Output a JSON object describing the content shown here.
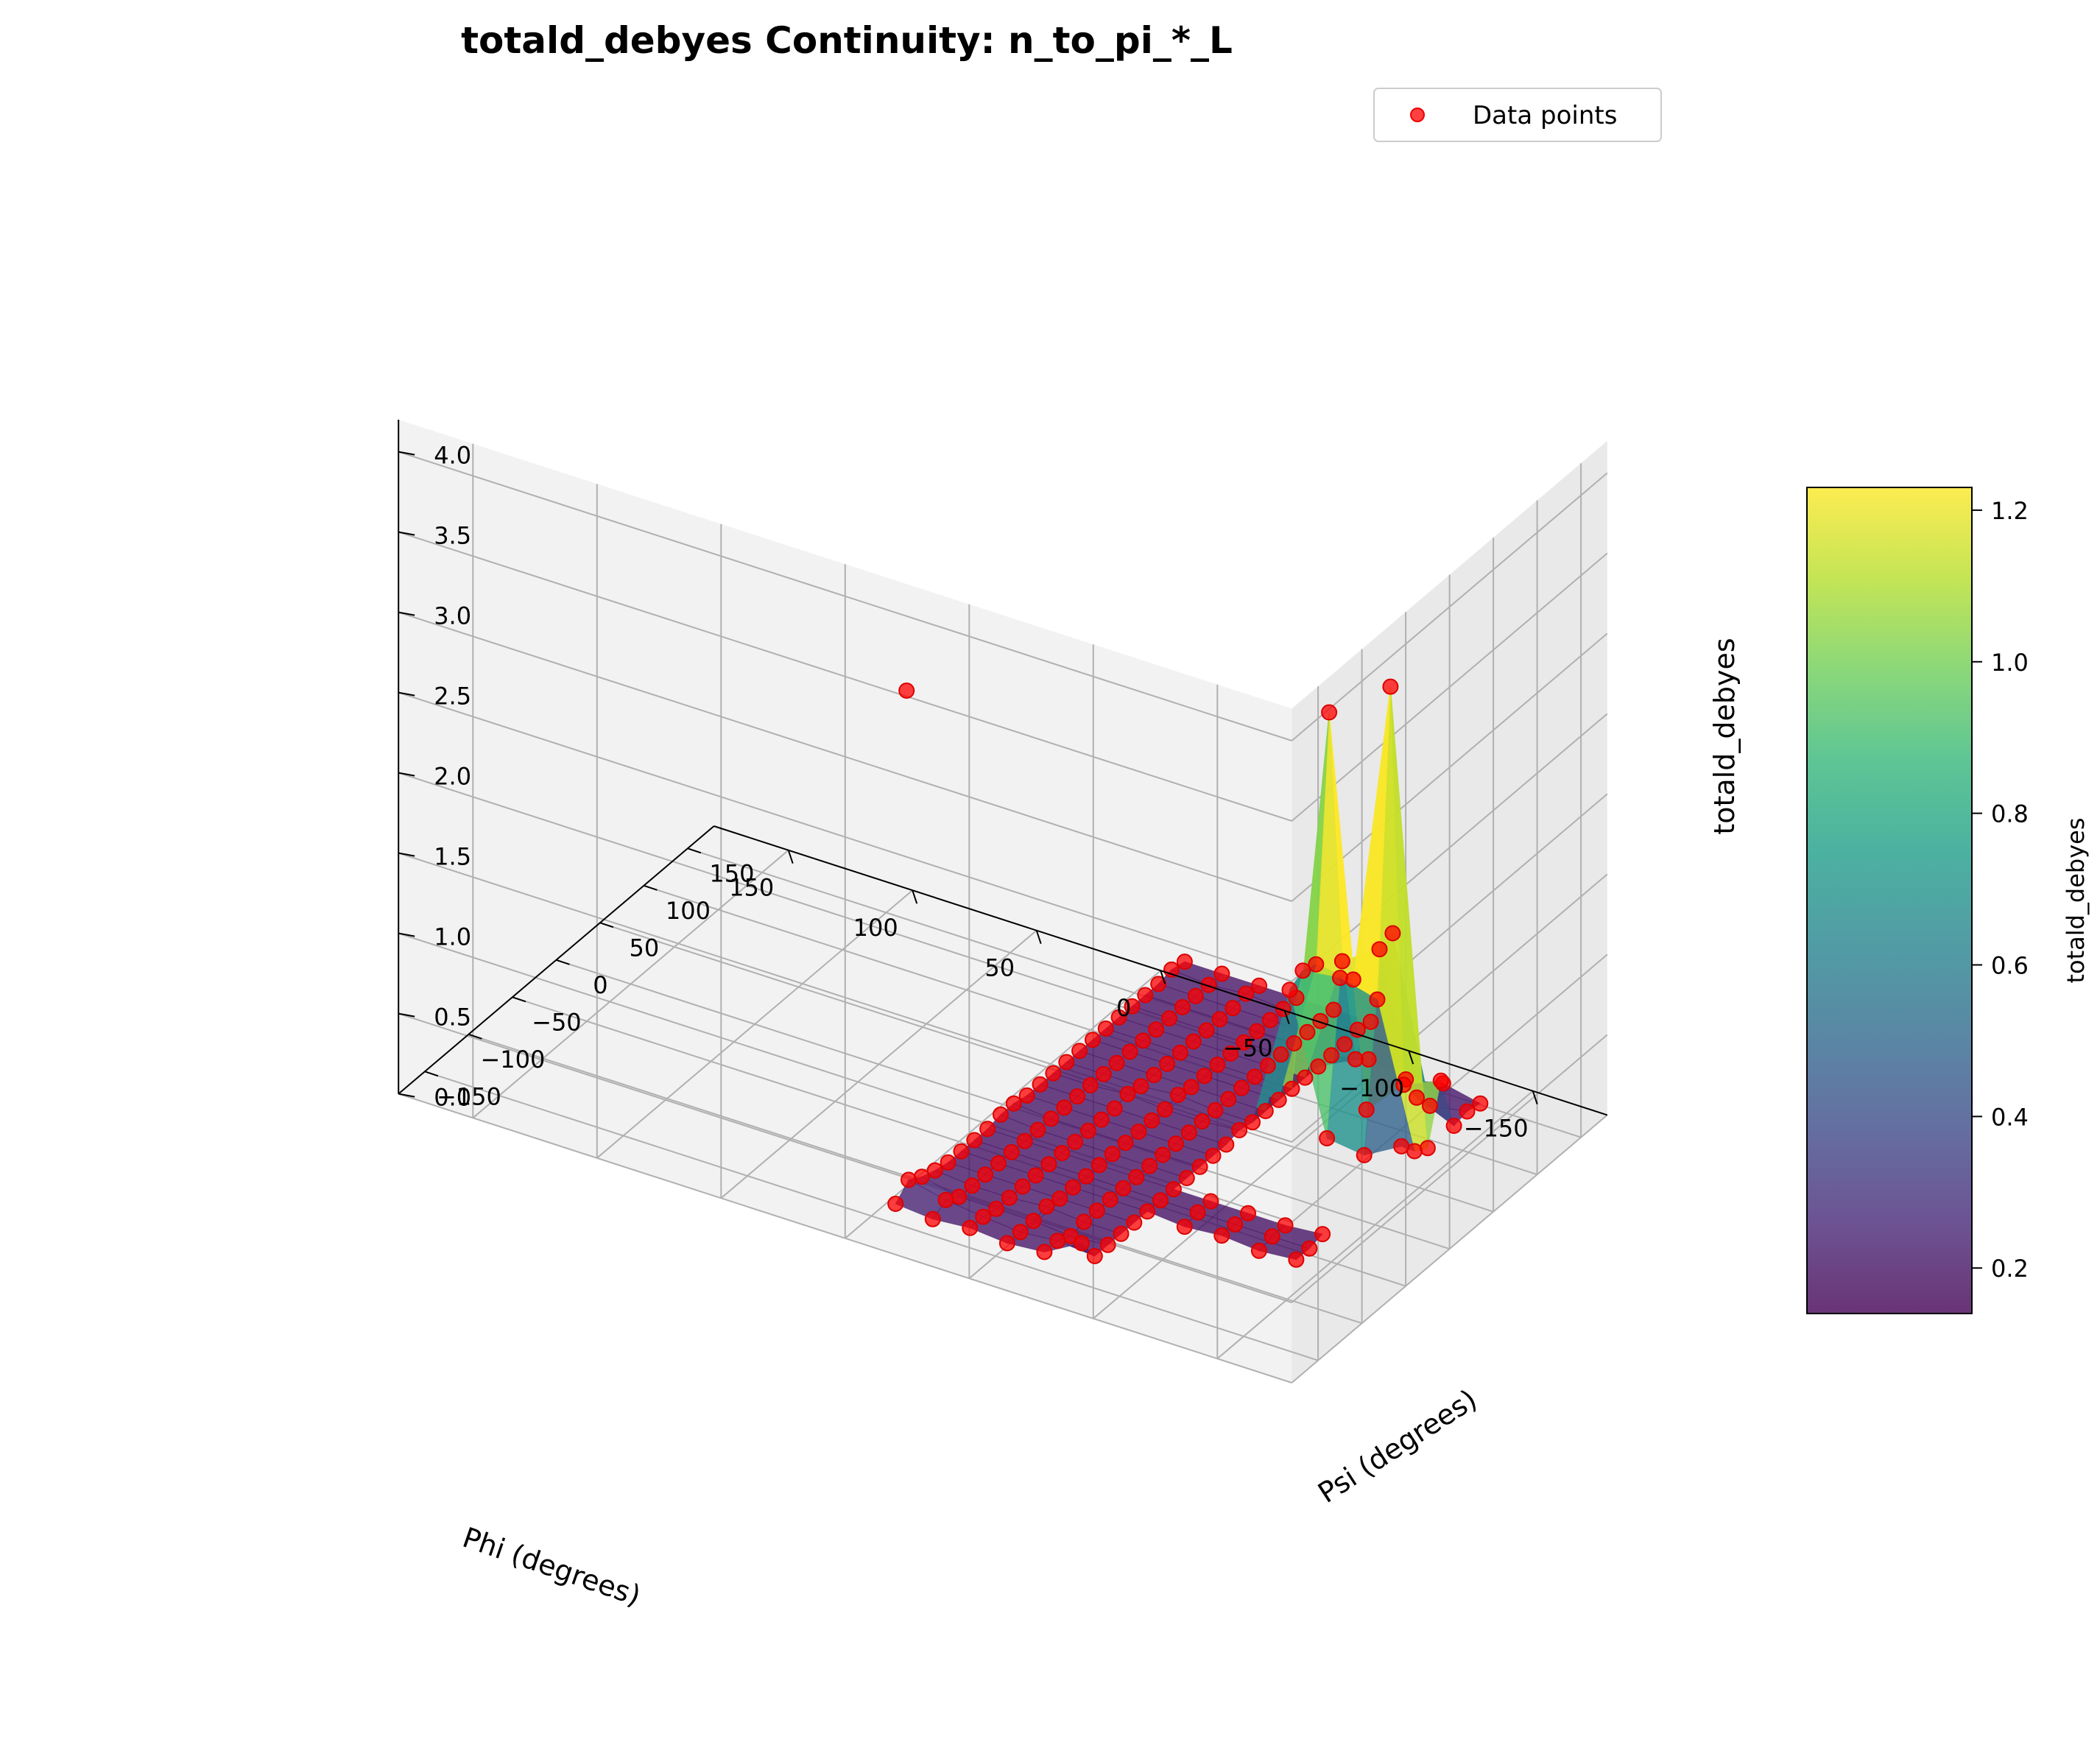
{
  "chart_data": {
    "type": "scatter",
    "surface_type": "surface3d",
    "title": "totald_debyes Continuity: n_to_pi_*_L",
    "xlabel": "Phi (degrees)",
    "ylabel": "Psi (degrees)",
    "zlabel": "totald_debyes",
    "xlim": [
      -180,
      180
    ],
    "ylim": [
      -180,
      180
    ],
    "zlim": [
      0,
      4.2
    ],
    "xticks": [
      "−150",
      "−100",
      "−50",
      "0",
      "50",
      "100",
      "150"
    ],
    "yticks": [
      "−150",
      "−100",
      "−50",
      "0",
      "50",
      "100",
      "150"
    ],
    "zticks": [
      "0.0",
      "0.5",
      "1.0",
      "1.5",
      "2.0",
      "2.5",
      "3.0",
      "3.5",
      "4.0"
    ],
    "colorbar": {
      "label": "totald_debyes",
      "colormap": "viridis",
      "range": [
        0.14,
        1.23
      ],
      "ticks": [
        "0.2",
        "0.4",
        "0.6",
        "0.8",
        "1.0",
        "1.2"
      ]
    },
    "legend": {
      "position": "top-right",
      "entries": [
        "Data points"
      ]
    },
    "grid": true,
    "marker_color": "#ff0000",
    "points": [
      [
        -90,
        -165,
        0.35
      ],
      [
        -75,
        -165,
        0.22
      ],
      [
        -60,
        -165,
        0.2
      ],
      [
        -45,
        -165,
        0.22
      ],
      [
        -30,
        -165,
        0.2
      ],
      [
        -15,
        -165,
        0.22
      ],
      [
        -90,
        -150,
        0.2
      ],
      [
        -75,
        -150,
        0.22
      ],
      [
        -60,
        -150,
        0.2
      ],
      [
        -45,
        -150,
        0.22
      ],
      [
        -30,
        -150,
        0.25
      ],
      [
        -15,
        -150,
        0.3
      ],
      [
        -90,
        -135,
        0.2
      ],
      [
        -75,
        -135,
        0.18
      ],
      [
        -60,
        -135,
        0.2
      ],
      [
        -45,
        -135,
        0.2
      ],
      [
        -30,
        -135,
        0.2
      ],
      [
        -15,
        -135,
        0.25
      ],
      [
        -90,
        -120,
        0.2
      ],
      [
        -75,
        -120,
        0.2
      ],
      [
        -60,
        -120,
        0.22
      ],
      [
        -45,
        -120,
        0.2
      ],
      [
        -30,
        -120,
        0.2
      ],
      [
        -15,
        -120,
        0.22
      ],
      [
        -90,
        -105,
        0.2
      ],
      [
        -75,
        -105,
        0.2
      ],
      [
        -60,
        -105,
        0.2
      ],
      [
        -45,
        -105,
        0.2
      ],
      [
        -30,
        -105,
        0.2
      ],
      [
        -15,
        -105,
        0.2
      ],
      [
        -90,
        -90,
        0.2
      ],
      [
        -75,
        -90,
        0.2
      ],
      [
        -60,
        -90,
        0.2
      ],
      [
        -45,
        -90,
        0.2
      ],
      [
        -30,
        -90,
        0.2
      ],
      [
        -15,
        -90,
        0.2
      ],
      [
        -90,
        -75,
        0.2
      ],
      [
        -75,
        -75,
        0.2
      ],
      [
        -60,
        -75,
        0.2
      ],
      [
        -45,
        -75,
        0.2
      ],
      [
        -30,
        -75,
        0.2
      ],
      [
        -15,
        -75,
        0.2
      ],
      [
        -90,
        -60,
        0.2
      ],
      [
        -75,
        -60,
        0.2
      ],
      [
        -60,
        -60,
        0.2
      ],
      [
        -45,
        -60,
        0.2
      ],
      [
        -30,
        -60,
        0.2
      ],
      [
        -15,
        -60,
        0.2
      ],
      [
        -90,
        -45,
        0.2
      ],
      [
        -75,
        -45,
        0.2
      ],
      [
        -60,
        -45,
        0.2
      ],
      [
        -45,
        -45,
        0.2
      ],
      [
        -30,
        -45,
        0.2
      ],
      [
        -15,
        -45,
        0.22
      ],
      [
        -90,
        -30,
        0.2
      ],
      [
        -75,
        -30,
        0.2
      ],
      [
        -60,
        -30,
        0.2
      ],
      [
        -45,
        -30,
        0.2
      ],
      [
        -30,
        -30,
        0.2
      ],
      [
        -15,
        -30,
        0.22
      ],
      [
        -90,
        -15,
        0.2
      ],
      [
        -75,
        -15,
        0.2
      ],
      [
        -60,
        -15,
        0.2
      ],
      [
        -45,
        -15,
        0.2
      ],
      [
        -30,
        -15,
        0.2
      ],
      [
        -15,
        -15,
        0.2
      ],
      [
        -90,
        0,
        0.2
      ],
      [
        -75,
        0,
        0.2
      ],
      [
        -60,
        0,
        0.2
      ],
      [
        -45,
        0,
        0.2
      ],
      [
        -30,
        0,
        0.2
      ],
      [
        -15,
        0,
        0.2
      ],
      [
        -90,
        15,
        0.22
      ],
      [
        -75,
        15,
        0.2
      ],
      [
        -60,
        15,
        0.2
      ],
      [
        -45,
        15,
        0.22
      ],
      [
        -30,
        15,
        0.2
      ],
      [
        -15,
        15,
        0.2
      ],
      [
        -90,
        30,
        0.2
      ],
      [
        -75,
        30,
        0.2
      ],
      [
        -60,
        30,
        0.22
      ],
      [
        -45,
        30,
        0.2
      ],
      [
        -30,
        30,
        0.2
      ],
      [
        -15,
        30,
        0.2
      ],
      [
        -90,
        45,
        0.2
      ],
      [
        -75,
        45,
        0.2
      ],
      [
        -60,
        45,
        0.2
      ],
      [
        -45,
        45,
        0.2
      ],
      [
        -30,
        45,
        0.2
      ],
      [
        -15,
        45,
        0.2
      ],
      [
        -90,
        60,
        0.2
      ],
      [
        -75,
        60,
        0.2
      ],
      [
        -60,
        60,
        0.2
      ],
      [
        -45,
        60,
        0.2
      ],
      [
        -30,
        60,
        0.2
      ],
      [
        -15,
        60,
        0.2
      ],
      [
        -90,
        75,
        0.2
      ],
      [
        -75,
        75,
        0.2
      ],
      [
        -60,
        75,
        0.2
      ],
      [
        -45,
        75,
        0.2
      ],
      [
        -30,
        75,
        0.2
      ],
      [
        -15,
        75,
        0.2
      ],
      [
        -90,
        90,
        0.2
      ],
      [
        -75,
        90,
        0.2
      ],
      [
        -60,
        90,
        0.2
      ],
      [
        -45,
        90,
        0.2
      ],
      [
        -30,
        90,
        0.2
      ],
      [
        -15,
        90,
        0.2
      ],
      [
        -90,
        105,
        0.2
      ],
      [
        -75,
        105,
        0.2
      ],
      [
        -60,
        105,
        0.2
      ],
      [
        -45,
        105,
        0.2
      ],
      [
        -30,
        105,
        0.2
      ],
      [
        -15,
        105,
        0.2
      ],
      [
        -90,
        120,
        0.2
      ],
      [
        -75,
        120,
        0.2
      ],
      [
        -60,
        120,
        0.2
      ],
      [
        -45,
        120,
        0.2
      ],
      [
        -30,
        120,
        0.2
      ],
      [
        -15,
        120,
        0.2
      ],
      [
        -90,
        135,
        0.2
      ],
      [
        -75,
        135,
        0.2
      ],
      [
        -60,
        135,
        0.2
      ],
      [
        -45,
        135,
        0.2
      ],
      [
        -30,
        135,
        0.2
      ],
      [
        -15,
        135,
        0.2
      ],
      [
        -90,
        150,
        0.22
      ],
      [
        -75,
        150,
        0.2
      ],
      [
        -60,
        150,
        0.2
      ],
      [
        -45,
        150,
        0.22
      ],
      [
        -30,
        150,
        0.2
      ],
      [
        -15,
        150,
        0.22
      ],
      [
        -90,
        165,
        0.2
      ],
      [
        -75,
        165,
        0.2
      ],
      [
        -60,
        165,
        0.2
      ],
      [
        -45,
        165,
        0.2
      ],
      [
        -30,
        165,
        0.2
      ],
      [
        -15,
        165,
        0.2
      ],
      [
        -150,
        -90,
        0.2
      ],
      [
        -135,
        -90,
        0.18
      ],
      [
        -120,
        -90,
        0.2
      ],
      [
        -105,
        -90,
        0.18
      ],
      [
        -150,
        -75,
        0.2
      ],
      [
        -135,
        -75,
        0.2
      ],
      [
        -120,
        -75,
        0.2
      ],
      [
        -105,
        -75,
        0.2
      ],
      [
        -150,
        -60,
        0.22
      ],
      [
        -135,
        -60,
        0.2
      ],
      [
        -120,
        -60,
        0.2
      ],
      [
        -105,
        -60,
        0.2
      ],
      [
        -150,
        30,
        0.35
      ],
      [
        -135,
        30,
        0.22
      ],
      [
        -120,
        30,
        0.25
      ],
      [
        -105,
        30,
        1.1
      ],
      [
        -150,
        45,
        0.25
      ],
      [
        -135,
        45,
        1.12
      ],
      [
        -120,
        45,
        1.18
      ],
      [
        -105,
        45,
        1.15
      ],
      [
        -150,
        60,
        0.2
      ],
      [
        -135,
        60,
        3.0
      ],
      [
        -120,
        60,
        1.1
      ],
      [
        -105,
        60,
        1.12
      ],
      [
        -150,
        75,
        0.55
      ],
      [
        -135,
        75,
        0.45
      ],
      [
        -120,
        75,
        0.22
      ],
      [
        -105,
        75,
        2.62
      ],
      [
        -150,
        90,
        0.2
      ],
      [
        -135,
        90,
        0.3
      ],
      [
        -120,
        90,
        1.15
      ],
      [
        -105,
        90,
        1.0
      ],
      [
        -150,
        105,
        0.22
      ],
      [
        -135,
        105,
        0.18
      ],
      [
        -120,
        105,
        1.18
      ],
      [
        -105,
        105,
        0.32
      ],
      [
        -150,
        120,
        0.2
      ],
      [
        -135,
        120,
        0.25
      ],
      [
        -120,
        120,
        0.2
      ],
      [
        -105,
        120,
        0.25
      ],
      [
        60,
        60,
        2.0
      ]
    ]
  }
}
